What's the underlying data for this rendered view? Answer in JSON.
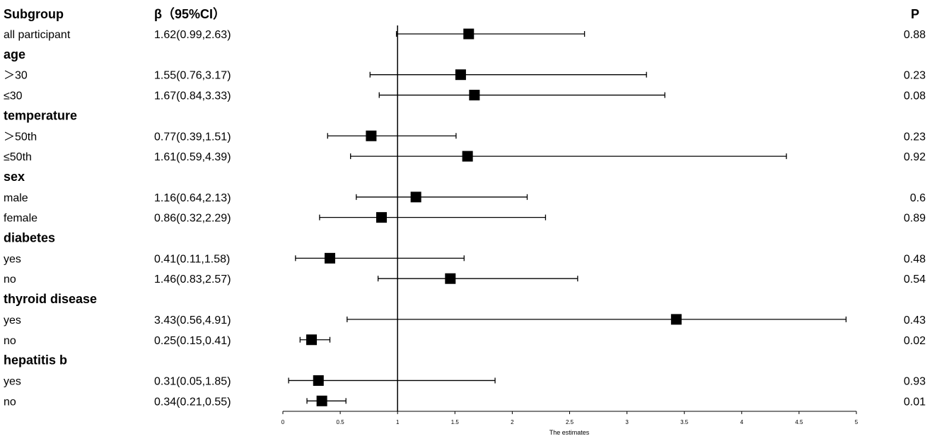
{
  "chart_data": {
    "type": "forest",
    "headers": {
      "subgroup": "Subgroup",
      "estimate": "β（95%CI）",
      "p": "P"
    },
    "xlabel": "The estimates",
    "xlim": [
      0,
      5
    ],
    "xticks": [
      "0",
      "0.5",
      "1",
      "1.5",
      "2",
      "2.5",
      "3",
      "3.5",
      "4",
      "4.5",
      "5"
    ],
    "reference_line": 1,
    "rows": [
      {
        "kind": "item",
        "label": "all participant",
        "est_text": "1.62(0.99,2.63)",
        "est": 1.62,
        "lo": 0.99,
        "hi": 2.63,
        "p": "0.88"
      },
      {
        "kind": "group",
        "label": "age"
      },
      {
        "kind": "item",
        "label": "＞30",
        "est_text": "1.55(0.76,3.17)",
        "est": 1.55,
        "lo": 0.76,
        "hi": 3.17,
        "p": "0.23"
      },
      {
        "kind": "item",
        "label": "≤30",
        "est_text": "1.67(0.84,3.33)",
        "est": 1.67,
        "lo": 0.84,
        "hi": 3.33,
        "p": "0.08"
      },
      {
        "kind": "group",
        "label": "temperature"
      },
      {
        "kind": "item",
        "label": "＞50th",
        "est_text": "0.77(0.39,1.51)",
        "est": 0.77,
        "lo": 0.39,
        "hi": 1.51,
        "p": "0.23"
      },
      {
        "kind": "item",
        "label": "≤50th",
        "est_text": "1.61(0.59,4.39)",
        "est": 1.61,
        "lo": 0.59,
        "hi": 4.39,
        "p": "0.92"
      },
      {
        "kind": "group",
        "label": "sex"
      },
      {
        "kind": "item",
        "label": "male",
        "est_text": "1.16(0.64,2.13)",
        "est": 1.16,
        "lo": 0.64,
        "hi": 2.13,
        "p": "0.6"
      },
      {
        "kind": "item",
        "label": "female",
        "est_text": "0.86(0.32,2.29)",
        "est": 0.86,
        "lo": 0.32,
        "hi": 2.29,
        "p": "0.89"
      },
      {
        "kind": "group",
        "label": "diabetes"
      },
      {
        "kind": "item",
        "label": "yes",
        "est_text": "0.41(0.11,1.58)",
        "est": 0.41,
        "lo": 0.11,
        "hi": 1.58,
        "p": "0.48"
      },
      {
        "kind": "item",
        "label": "no",
        "est_text": "1.46(0.83,2.57)",
        "est": 1.46,
        "lo": 0.83,
        "hi": 2.57,
        "p": "0.54"
      },
      {
        "kind": "group",
        "label": "thyroid disease"
      },
      {
        "kind": "item",
        "label": "yes",
        "est_text": "3.43(0.56,4.91)",
        "est": 3.43,
        "lo": 0.56,
        "hi": 4.91,
        "p": "0.43"
      },
      {
        "kind": "item",
        "label": "no",
        "est_text": "0.25(0.15,0.41)",
        "est": 0.25,
        "lo": 0.15,
        "hi": 0.41,
        "p": "0.02"
      },
      {
        "kind": "group",
        "label": "hepatitis b"
      },
      {
        "kind": "item",
        "label": "yes",
        "est_text": "0.31(0.05,1.85)",
        "est": 0.31,
        "lo": 0.05,
        "hi": 1.85,
        "p": "0.93"
      },
      {
        "kind": "item",
        "label": "no",
        "est_text": "0.34(0.21,0.55)",
        "est": 0.34,
        "lo": 0.21,
        "hi": 0.55,
        "p": "0.01"
      }
    ]
  }
}
